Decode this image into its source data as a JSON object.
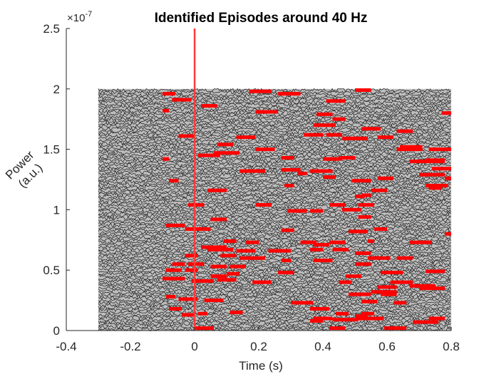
{
  "chart_data": {
    "type": "raster",
    "title": "Identified Episodes around 40 Hz",
    "xlabel": "Time (s)",
    "ylabel_lines": [
      "Power",
      "(a.u.)"
    ],
    "y_exponent_label": "×10",
    "y_exponent_power": "-7",
    "xlim": [
      -0.4,
      0.8
    ],
    "ylim": [
      0,
      2.5
    ],
    "x_ticks": [
      -0.4,
      -0.2,
      0,
      0.2,
      0.4,
      0.6,
      0.8
    ],
    "x_tick_labels": [
      "-0.4",
      "-0.2",
      "0",
      "0.2",
      "0.4",
      "0.6",
      "0.8"
    ],
    "y_ticks": [
      0,
      0.5,
      1,
      1.5,
      2,
      2.5
    ],
    "y_tick_labels": [
      "0",
      "0.5",
      "1",
      "1.5",
      "2",
      "2.5"
    ],
    "trace_region": {
      "x_start": -0.3,
      "x_end": 0.8,
      "y_bottom": 0,
      "y_top": 2.0,
      "trace_count": 100
    },
    "event_line": {
      "x": 0,
      "color": "#ff3b3b"
    },
    "colors": {
      "trace": "#1a1a1a",
      "episode": "#ff0000",
      "axis": "#262626"
    },
    "episodes": [
      {
        "x0": -0.1,
        "x1": -0.06,
        "y": 1.96
      },
      {
        "x0": -0.07,
        "x1": -0.01,
        "y": 1.91
      },
      {
        "x0": 0.02,
        "x1": 0.07,
        "y": 1.86
      },
      {
        "x0": 0.27,
        "x1": 0.33,
        "y": 1.96
      },
      {
        "x0": 0.26,
        "x1": 0.32,
        "y": 1.96
      },
      {
        "x0": 0.17,
        "x1": 0.24,
        "y": 1.98
      },
      {
        "x0": 0.5,
        "x1": 0.55,
        "y": 1.99
      },
      {
        "x0": 0.5,
        "x1": 0.55,
        "y": 1.99
      },
      {
        "x0": 0.41,
        "x1": 0.47,
        "y": 1.9
      },
      {
        "x0": 0.19,
        "x1": 0.26,
        "y": 1.81
      },
      {
        "x0": 0.13,
        "x1": 0.19,
        "y": 1.6
      },
      {
        "x0": -0.1,
        "x1": -0.08,
        "y": 1.82
      },
      {
        "x0": 0.38,
        "x1": 0.43,
        "y": 1.79
      },
      {
        "x0": 0.43,
        "x1": 0.47,
        "y": 1.75
      },
      {
        "x0": 0.37,
        "x1": 0.44,
        "y": 1.7
      },
      {
        "x0": 0.52,
        "x1": 0.58,
        "y": 1.67
      },
      {
        "x0": 0.63,
        "x1": 0.68,
        "y": 1.65
      },
      {
        "x0": 0.77,
        "x1": 0.8,
        "y": 1.8
      },
      {
        "x0": 0.41,
        "x1": 0.46,
        "y": 1.62
      },
      {
        "x0": 0.34,
        "x1": 0.4,
        "y": 1.62
      },
      {
        "x0": -0.05,
        "x1": 0.0,
        "y": 1.61
      },
      {
        "x0": 0.46,
        "x1": 0.51,
        "y": 1.59
      },
      {
        "x0": 0.48,
        "x1": 0.54,
        "y": 1.59
      },
      {
        "x0": 0.57,
        "x1": 0.62,
        "y": 1.6
      },
      {
        "x0": 0.07,
        "x1": 0.12,
        "y": 1.54
      },
      {
        "x0": 0.06,
        "x1": 0.14,
        "y": 1.47
      },
      {
        "x0": 0.19,
        "x1": 0.25,
        "y": 1.5
      },
      {
        "x0": 0.63,
        "x1": 0.71,
        "y": 1.5
      },
      {
        "x0": 0.64,
        "x1": 0.71,
        "y": 1.52
      },
      {
        "x0": 0.73,
        "x1": 0.8,
        "y": 1.5
      },
      {
        "x0": 0.27,
        "x1": 0.31,
        "y": 1.43
      },
      {
        "x0": 0.4,
        "x1": 0.46,
        "y": 1.42
      },
      {
        "x0": 0.45,
        "x1": 0.5,
        "y": 1.43
      },
      {
        "x0": 0.01,
        "x1": 0.08,
        "y": 1.45
      },
      {
        "x0": 0.72,
        "x1": 0.78,
        "y": 1.41
      },
      {
        "x0": 0.67,
        "x1": 0.78,
        "y": 1.4
      },
      {
        "x0": -0.1,
        "x1": -0.08,
        "y": 1.42
      },
      {
        "x0": 0.14,
        "x1": 0.22,
        "y": 1.32
      },
      {
        "x0": 0.27,
        "x1": 0.33,
        "y": 1.33
      },
      {
        "x0": 0.36,
        "x1": 0.43,
        "y": 1.32
      },
      {
        "x0": 0.32,
        "x1": 0.35,
        "y": 1.3
      },
      {
        "x0": 0.74,
        "x1": 0.8,
        "y": 1.34
      },
      {
        "x0": 0.7,
        "x1": 0.78,
        "y": 1.29
      },
      {
        "x0": 0.49,
        "x1": 0.55,
        "y": 1.24
      },
      {
        "x0": 0.57,
        "x1": 0.62,
        "y": 1.26
      },
      {
        "x0": -0.08,
        "x1": -0.05,
        "y": 1.24
      },
      {
        "x0": 0.4,
        "x1": 0.44,
        "y": 1.27
      },
      {
        "x0": 0.04,
        "x1": 0.1,
        "y": 1.16
      },
      {
        "x0": 0.28,
        "x1": 0.31,
        "y": 1.2
      },
      {
        "x0": 0.55,
        "x1": 0.6,
        "y": 1.16
      },
      {
        "x0": 0.52,
        "x1": 0.55,
        "y": 1.12
      },
      {
        "x0": 0.72,
        "x1": 0.79,
        "y": 1.2
      },
      {
        "x0": 0.73,
        "x1": 0.77,
        "y": 1.18
      },
      {
        "x0": 0.78,
        "x1": 0.8,
        "y": 1.26
      },
      {
        "x0": 0.5,
        "x1": 0.53,
        "y": 1.11
      },
      {
        "x0": -0.02,
        "x1": 0.03,
        "y": 1.04
      },
      {
        "x0": 0.19,
        "x1": 0.24,
        "y": 1.04
      },
      {
        "x0": 0.42,
        "x1": 0.47,
        "y": 1.04
      },
      {
        "x0": 0.51,
        "x1": 0.56,
        "y": 1.04
      },
      {
        "x0": 0.46,
        "x1": 0.52,
        "y": 1.0
      },
      {
        "x0": 0.29,
        "x1": 0.35,
        "y": 0.99
      },
      {
        "x0": 0.36,
        "x1": 0.4,
        "y": 0.99
      },
      {
        "x0": 0.51,
        "x1": 0.55,
        "y": 0.94
      },
      {
        "x0": 0.05,
        "x1": 0.1,
        "y": 0.92
      },
      {
        "x0": -0.09,
        "x1": -0.03,
        "y": 0.87
      },
      {
        "x0": -0.03,
        "x1": 0.05,
        "y": 0.84
      },
      {
        "x0": 0.27,
        "x1": 0.31,
        "y": 0.83
      },
      {
        "x0": 0.48,
        "x1": 0.54,
        "y": 0.82
      },
      {
        "x0": 0.56,
        "x1": 0.6,
        "y": 0.84
      },
      {
        "x0": 0.78,
        "x1": 0.8,
        "y": 0.8
      },
      {
        "x0": 0.09,
        "x1": 0.13,
        "y": 0.74
      },
      {
        "x0": 0.16,
        "x1": 0.2,
        "y": 0.73
      },
      {
        "x0": 0.33,
        "x1": 0.38,
        "y": 0.73
      },
      {
        "x0": 0.37,
        "x1": 0.42,
        "y": 0.71
      },
      {
        "x0": 0.42,
        "x1": 0.47,
        "y": 0.73
      },
      {
        "x0": 0.54,
        "x1": 0.56,
        "y": 0.74
      },
      {
        "x0": 0.67,
        "x1": 0.74,
        "y": 0.73
      },
      {
        "x0": 0.02,
        "x1": 0.1,
        "y": 0.69
      },
      {
        "x0": 0.04,
        "x1": 0.12,
        "y": 0.67
      },
      {
        "x0": 0.13,
        "x1": 0.19,
        "y": 0.66
      },
      {
        "x0": 0.23,
        "x1": 0.3,
        "y": 0.66
      },
      {
        "x0": 0.36,
        "x1": 0.4,
        "y": 0.67
      },
      {
        "x0": 0.43,
        "x1": 0.48,
        "y": 0.67
      },
      {
        "x0": 0.5,
        "x1": 0.55,
        "y": 0.64
      },
      {
        "x0": 0.08,
        "x1": 0.13,
        "y": 0.62
      },
      {
        "x0": -0.03,
        "x1": 0.01,
        "y": 0.62
      },
      {
        "x0": 0.14,
        "x1": 0.22,
        "y": 0.6
      },
      {
        "x0": 0.27,
        "x1": 0.3,
        "y": 0.58
      },
      {
        "x0": 0.37,
        "x1": 0.43,
        "y": 0.58
      },
      {
        "x0": 0.54,
        "x1": 0.61,
        "y": 0.6
      },
      {
        "x0": 0.63,
        "x1": 0.68,
        "y": 0.6
      },
      {
        "x0": -0.07,
        "x1": -0.03,
        "y": 0.55
      },
      {
        "x0": -0.02,
        "x1": 0.03,
        "y": 0.55
      },
      {
        "x0": 0.05,
        "x1": 0.1,
        "y": 0.53
      },
      {
        "x0": 0.11,
        "x1": 0.16,
        "y": 0.53
      },
      {
        "x0": 0.5,
        "x1": 0.55,
        "y": 0.55
      },
      {
        "x0": -0.09,
        "x1": -0.04,
        "y": 0.5
      },
      {
        "x0": -0.03,
        "x1": 0.01,
        "y": 0.5
      },
      {
        "x0": 0.05,
        "x1": 0.1,
        "y": 0.45
      },
      {
        "x0": 0.1,
        "x1": 0.14,
        "y": 0.47
      },
      {
        "x0": 0.26,
        "x1": 0.31,
        "y": 0.48
      },
      {
        "x0": 0.47,
        "x1": 0.52,
        "y": 0.45
      },
      {
        "x0": 0.58,
        "x1": 0.65,
        "y": 0.48
      },
      {
        "x0": 0.72,
        "x1": 0.78,
        "y": 0.49
      },
      {
        "x0": -0.1,
        "x1": -0.03,
        "y": 0.43
      },
      {
        "x0": -0.01,
        "x1": 0.06,
        "y": 0.41
      },
      {
        "x0": 0.07,
        "x1": 0.13,
        "y": 0.42
      },
      {
        "x0": 0.18,
        "x1": 0.24,
        "y": 0.4
      },
      {
        "x0": 0.45,
        "x1": 0.49,
        "y": 0.4
      },
      {
        "x0": 0.61,
        "x1": 0.68,
        "y": 0.4
      },
      {
        "x0": 0.67,
        "x1": 0.75,
        "y": 0.37
      },
      {
        "x0": 0.57,
        "x1": 0.63,
        "y": 0.36
      },
      {
        "x0": 0.7,
        "x1": 0.78,
        "y": 0.35
      },
      {
        "x0": 0.55,
        "x1": 0.63,
        "y": 0.32
      },
      {
        "x0": 0.48,
        "x1": 0.55,
        "y": 0.3
      },
      {
        "x0": 0.58,
        "x1": 0.63,
        "y": 0.3
      },
      {
        "x0": -0.09,
        "x1": -0.06,
        "y": 0.28
      },
      {
        "x0": -0.05,
        "x1": 0.01,
        "y": 0.26
      },
      {
        "x0": 0.03,
        "x1": 0.09,
        "y": 0.25
      },
      {
        "x0": 0.3,
        "x1": 0.37,
        "y": 0.23
      },
      {
        "x0": 0.52,
        "x1": 0.57,
        "y": 0.24
      },
      {
        "x0": 0.62,
        "x1": 0.66,
        "y": 0.23
      },
      {
        "x0": 0.36,
        "x1": 0.42,
        "y": 0.18
      },
      {
        "x0": -0.08,
        "x1": -0.04,
        "y": 0.18
      },
      {
        "x0": 0.11,
        "x1": 0.15,
        "y": 0.15
      },
      {
        "x0": 0.01,
        "x1": 0.04,
        "y": 0.14
      },
      {
        "x0": 0.44,
        "x1": 0.48,
        "y": 0.14
      },
      {
        "x0": 0.52,
        "x1": 0.56,
        "y": 0.14
      },
      {
        "x0": 0.5,
        "x1": 0.54,
        "y": 0.12
      },
      {
        "x0": 0.37,
        "x1": 0.43,
        "y": 0.1
      },
      {
        "x0": 0.36,
        "x1": 0.4,
        "y": 0.08
      },
      {
        "x0": 0.43,
        "x1": 0.51,
        "y": 0.09
      },
      {
        "x0": 0.51,
        "x1": 0.59,
        "y": 0.1
      },
      {
        "x0": 0.68,
        "x1": 0.76,
        "y": 0.07
      },
      {
        "x0": 0.73,
        "x1": 0.78,
        "y": 0.1
      },
      {
        "x0": -0.04,
        "x1": 0.0,
        "y": 0.13
      },
      {
        "x0": 0.0,
        "x1": 0.06,
        "y": 0.02
      },
      {
        "x0": 0.42,
        "x1": 0.47,
        "y": 0.02
      },
      {
        "x0": 0.59,
        "x1": 0.66,
        "y": 0.02
      }
    ]
  }
}
